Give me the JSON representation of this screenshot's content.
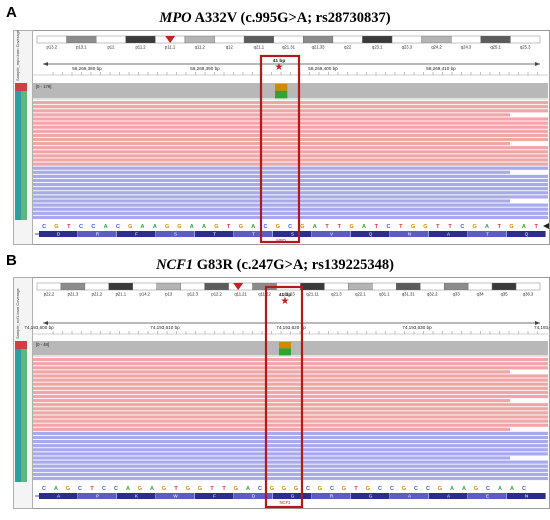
{
  "panels": [
    {
      "letter": "A",
      "gene": "MPO",
      "variant": " A332V (c.995G>A; rs28730837)",
      "bands": [
        "p13.2",
        "p13.1",
        "p12",
        "p11.2",
        "p11.1",
        "q11.2",
        "q12",
        "q21.1",
        "q21.31",
        "q21.33",
        "q22",
        "q23.1",
        "q23.3",
        "q24.2",
        "q24.3",
        "q25.1",
        "q25.3"
      ],
      "span_label": "41 bp",
      "ruler_labels": [
        "58,269,380 bp",
        "58,269,390 bp",
        "58,269,400 bp",
        "58,269,410 bp"
      ],
      "track_info": "[0 - 179]",
      "sequence": [
        "C",
        "G",
        "T",
        "C",
        "C",
        "A",
        "C",
        "G",
        "A",
        "A",
        "G",
        "G",
        "A",
        "A",
        "G",
        "T",
        "G",
        "A",
        "C",
        "G",
        "C",
        "G",
        "A",
        "T",
        "T",
        "G",
        "A",
        "T",
        "C",
        "T",
        "G",
        "G",
        "T",
        "T",
        "C",
        "G",
        "A",
        "T",
        "G",
        "A",
        "T"
      ],
      "amino_acids": [
        "D",
        "R",
        "F",
        "S",
        "T",
        "T",
        "S",
        "V",
        "Q",
        "N",
        "A",
        "T",
        "Q"
      ],
      "gene_label": "MPO",
      "sidebar_label": "Sample_mpo.bam Coverage"
    },
    {
      "letter": "B",
      "gene": "NCF1",
      "variant": " G83R (c.247G>A; rs139225348)",
      "bands": [
        "p22.2",
        "p21.3",
        "p21.2",
        "p21.1",
        "p14.2",
        "p13",
        "p12.3",
        "p12.2",
        "q11.21",
        "q11.22",
        "q11.23",
        "q21.11",
        "q21.3",
        "q22.1",
        "q31.1",
        "q31.31",
        "q32.2",
        "q33",
        "q34",
        "q35",
        "q36.3"
      ],
      "span_label": "41 bp",
      "ruler_labels": [
        "74,193,600 bp",
        "74,193,610 bp",
        "74,193,620 bp",
        "74,193,630 bp",
        "74,193,6"
      ],
      "track_info": "[0 - 48]",
      "sequence": [
        "C",
        "A",
        "G",
        "C",
        "T",
        "C",
        "C",
        "A",
        "G",
        "A",
        "G",
        "T",
        "G",
        "G",
        "T",
        "T",
        "G",
        "A",
        "C",
        "G",
        "G",
        "G",
        "C",
        "G",
        "C",
        "G",
        "T",
        "G",
        "C",
        "C",
        "G",
        "C",
        "C",
        "G",
        "A",
        "A",
        "G",
        "C",
        "A",
        "A",
        "C"
      ],
      "amino_acids": [
        "A",
        "P",
        "K",
        "W",
        "F",
        "D",
        "G",
        "R",
        "G",
        "A",
        "A",
        "E",
        "N"
      ],
      "gene_label": "NCF1",
      "sidebar_label": "Sample_ncf1.bam Coverage"
    }
  ],
  "colors": {
    "forward_read": "#f0a6a6",
    "reverse_read": "#a9a9ee",
    "coverage": "#b8b8b8",
    "highlight_box": "#b01a1a",
    "mismatch_a": "#2fa52f",
    "mismatch_g": "#d08a00",
    "aa_dark": "#2d2d8e",
    "aa_light": "#5c5cc4"
  }
}
